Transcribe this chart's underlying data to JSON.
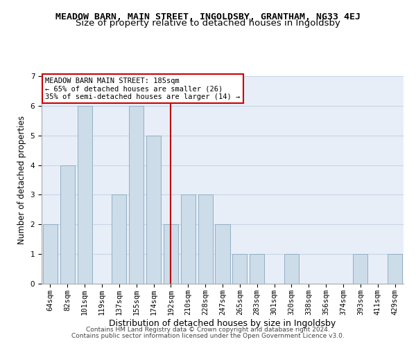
{
  "title": "MEADOW BARN, MAIN STREET, INGOLDSBY, GRANTHAM, NG33 4EJ",
  "subtitle": "Size of property relative to detached houses in Ingoldsby",
  "xlabel": "Distribution of detached houses by size in Ingoldsby",
  "ylabel": "Number of detached properties",
  "footer1": "Contains HM Land Registry data © Crown copyright and database right 2024.",
  "footer2": "Contains public sector information licensed under the Open Government Licence v3.0.",
  "categories": [
    "64sqm",
    "82sqm",
    "101sqm",
    "119sqm",
    "137sqm",
    "155sqm",
    "174sqm",
    "192sqm",
    "210sqm",
    "228sqm",
    "247sqm",
    "265sqm",
    "283sqm",
    "301sqm",
    "320sqm",
    "338sqm",
    "356sqm",
    "374sqm",
    "393sqm",
    "411sqm",
    "429sqm"
  ],
  "values": [
    2,
    4,
    6,
    0,
    3,
    6,
    5,
    2,
    3,
    3,
    2,
    1,
    1,
    0,
    1,
    0,
    0,
    0,
    1,
    0,
    1
  ],
  "bar_color": "#ccdce8",
  "bar_edge_color": "#92afc4",
  "red_line_index": 7,
  "red_line_color": "#bb0000",
  "ylim": [
    0,
    7
  ],
  "yticks": [
    0,
    1,
    2,
    3,
    4,
    5,
    6,
    7
  ],
  "annotation_text": "MEADOW BARN MAIN STREET: 185sqm\n← 65% of detached houses are smaller (26)\n35% of semi-detached houses are larger (14) →",
  "annotation_box_color": "#ffffff",
  "annotation_box_edge_color": "#cc0000",
  "grid_color": "#c8d4e4",
  "bg_color": "#e8eef8",
  "title_fontsize": 9.5,
  "subtitle_fontsize": 9.5,
  "xlabel_fontsize": 9,
  "ylabel_fontsize": 8.5,
  "tick_fontsize": 7.5,
  "annotation_fontsize": 7.5,
  "footer_fontsize": 6.5
}
